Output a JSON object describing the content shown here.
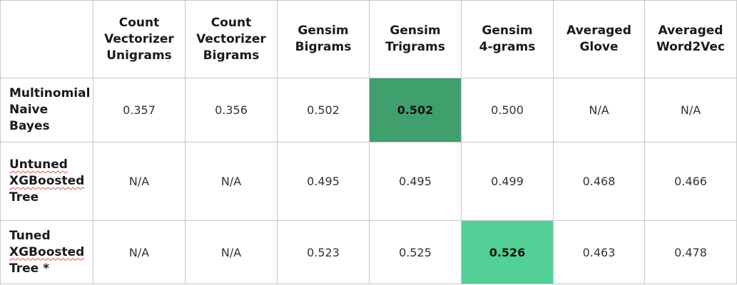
{
  "columns": [
    [
      "Count",
      "Vectorizer",
      "Unigrams"
    ],
    [
      "Count",
      "Vectorizer",
      "Bigrams"
    ],
    [
      "Gensim",
      "Bigrams"
    ],
    [
      "Gensim",
      "Trigrams"
    ],
    [
      "Gensim",
      "4-grams"
    ],
    [
      "Averaged",
      "Glove"
    ],
    [
      "Averaged",
      "Word2Vec"
    ]
  ],
  "rows": [
    {
      "label": [
        "Multinomial",
        "Naive",
        "Bayes"
      ],
      "values": [
        "0.357",
        "0.356",
        "0.502",
        "0.502",
        "0.500",
        "N/A",
        "N/A"
      ]
    },
    {
      "label": [
        "Untuned",
        "XGBoosted",
        "Tree"
      ],
      "values": [
        "N/A",
        "N/A",
        "0.495",
        "0.495",
        "0.499",
        "0.468",
        "0.466"
      ]
    },
    {
      "label": [
        "Tuned",
        "XGBoosted",
        "Tree *"
      ],
      "values": [
        "N/A",
        "N/A",
        "0.523",
        "0.525",
        "0.526",
        "0.463",
        "0.478"
      ]
    }
  ],
  "highlight_colors": {
    "best_nb": "#3fa06e",
    "best_overall": "#52d096"
  }
}
